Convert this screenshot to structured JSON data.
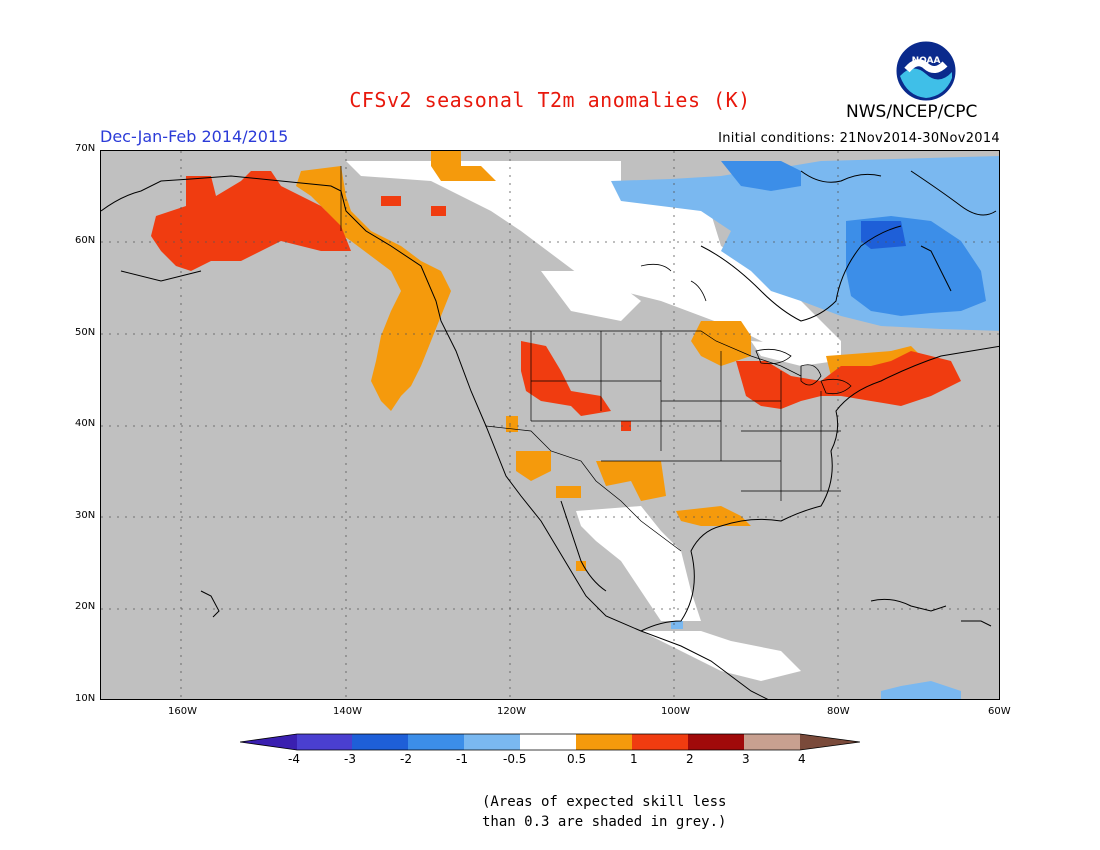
{
  "header": {
    "title": "CFSv2 seasonal T2m anomalies (K)",
    "season": "Dec-Jan-Feb 2014/2015",
    "initial_conditions": "Initial conditions: 21Nov2014-30Nov2014",
    "agency": "NWS/NCEP/CPC",
    "logo_text": "NOAA"
  },
  "map": {
    "lat_labels": [
      "70N",
      "60N",
      "50N",
      "40N",
      "30N",
      "20N",
      "10N"
    ],
    "lon_labels": [
      "160W",
      "140W",
      "120W",
      "100W",
      "80W",
      "60W"
    ],
    "region": "North America",
    "grey_meaning": "skill < 0.3"
  },
  "legend": {
    "tick_labels": [
      "-4",
      "-3",
      "-2",
      "-1",
      "-0.5",
      "0.5",
      "1",
      "2",
      "3",
      "4"
    ],
    "colors": [
      "#3a1fb0",
      "#4a3fd0",
      "#1e5fd8",
      "#3c8ee8",
      "#7ab8f0",
      "#ffffff",
      "#f59a0c",
      "#f03c10",
      "#a00a0a",
      "#c8a090",
      "#7a4a3a"
    ]
  },
  "footnote": {
    "line1": "(Areas of expected skill less",
    "line2": "than 0.3 are shaded in grey.)"
  },
  "colors": {
    "title": "#e8180c",
    "season": "#2b3bd8",
    "grey": "#c0c0c0"
  }
}
